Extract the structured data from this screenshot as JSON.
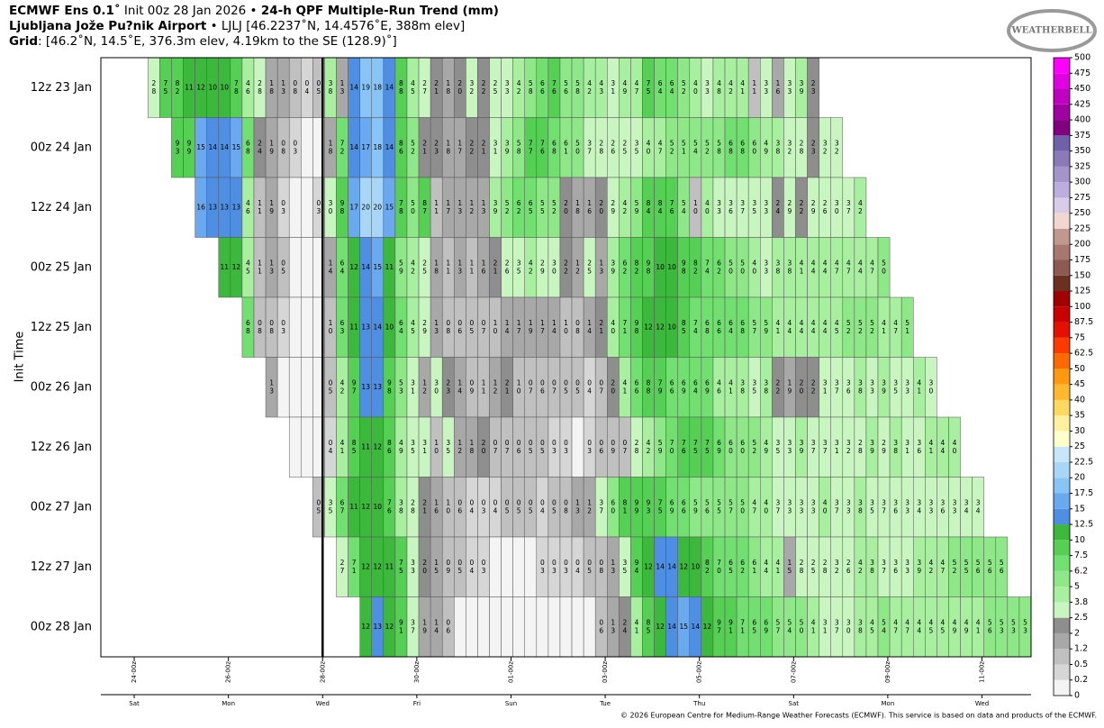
{
  "chart_data": {
    "type": "heatmap",
    "title": "ECMWF Ens 0.1˚",
    "run": "Init 00z 28 Jan 2026 •",
    "subtitle": "24-h QPF Multiple-Run Trend (mm)",
    "station": "Ljubljana Jože Pu?nik Airport",
    "station_info": "• LJLJ [46.2237˚N, 14.4576˚E, 388m elev]",
    "grid_label": "Grid",
    "grid_info": ": [46.2˚N, 14.5˚E, 376.3m elev, 4.19km to the SE (128.9)˚]",
    "logo": "WEATHERBELL",
    "ylabel": "Init Time",
    "footer": "© 2026 European Centre for Medium-Range Weather Forecasts (ECMWF). This service is based on data and products of the ECMWF.",
    "xlim": [
      7,
      481
    ],
    "xticks": [
      {
        "value": 24,
        "label": "24-00z"
      },
      {
        "value": 72,
        "label": "26-00z"
      },
      {
        "value": 120,
        "label": "28-00z"
      },
      {
        "value": 168,
        "label": "30-00z"
      },
      {
        "value": 216,
        "label": "01-00z"
      },
      {
        "value": 264,
        "label": "03-00z"
      },
      {
        "value": 312,
        "label": "05-00z"
      },
      {
        "value": 360,
        "label": "07-00z"
      },
      {
        "value": 408,
        "label": "09-00z"
      },
      {
        "value": 456,
        "label": "11-00z"
      }
    ],
    "xticks2": [
      {
        "value": 24,
        "label": "Sat"
      },
      {
        "value": 72,
        "label": "Mon"
      },
      {
        "value": 120,
        "label": "Wed"
      },
      {
        "value": 168,
        "label": "Fri"
      },
      {
        "value": 216,
        "label": "Sun"
      },
      {
        "value": 264,
        "label": "Tue"
      },
      {
        "value": 312,
        "label": "Thu"
      },
      {
        "value": 360,
        "label": "Sat"
      },
      {
        "value": 408,
        "label": "Mon"
      },
      {
        "value": 456,
        "label": "Wed"
      }
    ],
    "init_line": 120,
    "colorbar": {
      "levels": [
        0,
        0.2,
        0.5,
        1.2,
        2,
        2.5,
        3.8,
        5,
        6.2,
        7.5,
        10,
        12.5,
        15,
        17.5,
        20,
        22.5,
        25,
        30,
        35,
        40,
        45,
        50,
        62.5,
        75,
        87.5,
        100,
        125,
        150,
        175,
        200,
        225,
        250,
        275,
        300,
        325,
        350,
        375,
        400,
        425,
        450,
        475,
        500
      ],
      "colors": [
        "#f4f4f4",
        "#d6d6d6",
        "#c0c0c0",
        "#a8a8a8",
        "#8e8e8e",
        "#c8f5c0",
        "#a8efa0",
        "#8ee888",
        "#72e070",
        "#55d055",
        "#3cb83c",
        "#4f8fe3",
        "#6aa8f0",
        "#88c4f5",
        "#a8d6f7",
        "#c8e6fa",
        "#ffffcc",
        "#fff0a0",
        "#ffd860",
        "#ffb830",
        "#ff9a10",
        "#ff6a00",
        "#ff3a00",
        "#e41000",
        "#c80000",
        "#a00000",
        "#6a3020",
        "#8c5a50",
        "#a87870",
        "#c09890",
        "#f0d8d0",
        "#d8cce8",
        "#bcaedc",
        "#a394cc",
        "#8a7ab8",
        "#7060a8",
        "#800080",
        "#a000a0",
        "#c000c0",
        "#e000e0",
        "#ff00ff"
      ]
    },
    "series": [
      {
        "name": "12z 23 Jan",
        "values": [
          null,
          null,
          null,
          null,
          2.8,
          7.5,
          8.2,
          11,
          12,
          10,
          10,
          7.8,
          4.6,
          2.8,
          1.8,
          1.3,
          0.8,
          0.4,
          0.5,
          3.8,
          1.3,
          14,
          19,
          18,
          14,
          8.8,
          4.5,
          2.7,
          2.1,
          1.8,
          2,
          3.2,
          2.2,
          2.5,
          3.3,
          4.2,
          5.8,
          6.6,
          7.6,
          5.6,
          5.8,
          4.2,
          4.3,
          3.1,
          4.9,
          4.7,
          7.5,
          6.4,
          6.4,
          5.2,
          4,
          3.3,
          4.8,
          4.2,
          4.1,
          1.1,
          3.3,
          1.6,
          3.3,
          3.9,
          2.3,
          null,
          null,
          null,
          null,
          null,
          null,
          null,
          null,
          null,
          null,
          null,
          null,
          null,
          null,
          null,
          null,
          null,
          null
        ]
      },
      {
        "name": "00z 24 Jan",
        "values": [
          null,
          null,
          null,
          null,
          null,
          null,
          9.3,
          9.9,
          15,
          14,
          14,
          15,
          6.8,
          2.4,
          1.9,
          0.8,
          0.3,
          0,
          0,
          1.8,
          7.2,
          14,
          17,
          18,
          14,
          8.6,
          5.2,
          2.1,
          2.3,
          1.8,
          1.7,
          2.2,
          2.1,
          3.1,
          3.9,
          5.8,
          7.7,
          7.6,
          6.8,
          6.1,
          5,
          3.7,
          2.8,
          2.6,
          2.5,
          3.5,
          4,
          4.7,
          5.2,
          5.1,
          5.4,
          5.2,
          5.8,
          6.8,
          6.8,
          6,
          4.9,
          3.8,
          3.2,
          2.8,
          2.3,
          3.2,
          3.2,
          null,
          null,
          null,
          null,
          null,
          null,
          null,
          null,
          null,
          null,
          null,
          null,
          null,
          null,
          null,
          null
        ]
      },
      {
        "name": "12z 24 Jan",
        "values": [
          null,
          null,
          null,
          null,
          null,
          null,
          null,
          null,
          16,
          13,
          13,
          13,
          4.6,
          1.1,
          1.9,
          0.3,
          0,
          0,
          0.3,
          3,
          9.8,
          17,
          20,
          20,
          15,
          7.8,
          5,
          8.7,
          1.1,
          1.7,
          1.3,
          1.2,
          1.3,
          3.9,
          5.2,
          6.2,
          6.5,
          5.5,
          5.2,
          2,
          1.8,
          1.6,
          2,
          2.9,
          4.2,
          5.9,
          8.4,
          8.4,
          7.6,
          5.4,
          1,
          4,
          3.3,
          3.6,
          3.7,
          3.5,
          3.3,
          2.4,
          2.9,
          2.2,
          2.9,
          2.6,
          3,
          3.7,
          4.2,
          null,
          null,
          null,
          null,
          null,
          null,
          null,
          null,
          null,
          null,
          null,
          null,
          null,
          null
        ]
      },
      {
        "name": "00z 25 Jan",
        "values": [
          null,
          null,
          null,
          null,
          null,
          null,
          null,
          null,
          null,
          null,
          11,
          12,
          4.5,
          1.1,
          1.3,
          0.5,
          0,
          0,
          0,
          1.4,
          6.4,
          12,
          14,
          15,
          11,
          5.9,
          4.2,
          2.5,
          1.8,
          1.1,
          1.3,
          1.1,
          1.6,
          2.1,
          2.6,
          3.5,
          4.2,
          2.9,
          3,
          2.2,
          1.2,
          2.5,
          1.3,
          3.9,
          6.2,
          8.2,
          9.8,
          10,
          10,
          9.8,
          8.2,
          7.4,
          6.2,
          5,
          5,
          4,
          3.3,
          3.8,
          3.8,
          4.1,
          4.4,
          4.4,
          4.7,
          4.7,
          4.4,
          4.7,
          5,
          null,
          null,
          null,
          null,
          null,
          null,
          null,
          null,
          null,
          null,
          null,
          null
        ]
      },
      {
        "name": "12z 25 Jan",
        "values": [
          null,
          null,
          null,
          null,
          null,
          null,
          null,
          null,
          null,
          null,
          null,
          null,
          6.8,
          0.8,
          0.8,
          0.3,
          0,
          0,
          0,
          1,
          6.3,
          11,
          13,
          14,
          10,
          6.4,
          4.5,
          2.9,
          1.3,
          0.8,
          0.6,
          0.5,
          0.7,
          1,
          1.4,
          1.7,
          1.9,
          1.7,
          1.4,
          1,
          0.8,
          1.4,
          2.1,
          4,
          7.1,
          9.8,
          12,
          12,
          10,
          8.5,
          7.4,
          6.8,
          6.6,
          6.4,
          6.8,
          5.7,
          5.9,
          4.1,
          4.4,
          4.4,
          4.4,
          4.4,
          4.5,
          5.2,
          5.2,
          5.2,
          4.1,
          4.7,
          5.1,
          null,
          null,
          null,
          null,
          null,
          null,
          null,
          null,
          null,
          null
        ]
      },
      {
        "name": "00z 26 Jan",
        "values": [
          null,
          null,
          null,
          null,
          null,
          null,
          null,
          null,
          null,
          null,
          null,
          null,
          null,
          null,
          1.3,
          0,
          0,
          0,
          0,
          0.5,
          4.2,
          9.7,
          13,
          13,
          9.8,
          5.3,
          3.1,
          1.2,
          3,
          2.3,
          1.4,
          0.9,
          1.1,
          1.2,
          2.1,
          1,
          0.7,
          0.6,
          0.7,
          0.5,
          0.5,
          0.4,
          0.7,
          2,
          4.1,
          6.6,
          8.8,
          7.9,
          6.6,
          6.9,
          6.4,
          6.9,
          4.6,
          4.1,
          3.8,
          3.5,
          3.8,
          2.2,
          1.9,
          2,
          2.2,
          3.1,
          3.7,
          3.6,
          3.8,
          3.3,
          3.9,
          3.5,
          3.3,
          4.1,
          3,
          null,
          null,
          null,
          null,
          null,
          null,
          null,
          null
        ]
      },
      {
        "name": "12z 26 Jan",
        "values": [
          null,
          null,
          null,
          null,
          null,
          null,
          null,
          null,
          null,
          null,
          null,
          null,
          null,
          null,
          null,
          null,
          0,
          0,
          0,
          0.4,
          4.1,
          8.5,
          11,
          12,
          8.6,
          4.9,
          3.5,
          3.1,
          1,
          3.5,
          1.2,
          1.8,
          2,
          0.7,
          0.7,
          0.6,
          0.5,
          0.5,
          0.3,
          0.3,
          0,
          0.3,
          0.6,
          0.9,
          0.7,
          2.8,
          4.2,
          5.9,
          7,
          7.6,
          7.5,
          7.5,
          6.9,
          6,
          6,
          5.2,
          4.9,
          3.5,
          3.3,
          3.9,
          3.7,
          3.7,
          3.1,
          3.2,
          2.8,
          3.9,
          2.9,
          3.8,
          3.1,
          3.6,
          4.1,
          4.4,
          4,
          null,
          null,
          null,
          null,
          null,
          null
        ]
      },
      {
        "name": "00z 27 Jan",
        "values": [
          null,
          null,
          null,
          null,
          null,
          null,
          null,
          null,
          null,
          null,
          null,
          null,
          null,
          null,
          null,
          null,
          null,
          null,
          0.5,
          3.5,
          6.7,
          11,
          12,
          10,
          7.6,
          3.8,
          2.8,
          2.1,
          1.6,
          1,
          0.6,
          0.4,
          0.3,
          0.4,
          0.5,
          0.5,
          0.5,
          0.4,
          0.5,
          0.8,
          1.3,
          1.2,
          3.7,
          6,
          8.1,
          9.9,
          9.3,
          7.5,
          6.9,
          6.6,
          5.9,
          5.6,
          5.5,
          5.7,
          5,
          4.7,
          4,
          3.7,
          3.3,
          3.3,
          3.3,
          4,
          3.7,
          3.3,
          3.8,
          3.5,
          3.7,
          3.6,
          3.3,
          3.4,
          3.3,
          3.6,
          3.3,
          3.4,
          3.4,
          null,
          null,
          null,
          null
        ]
      },
      {
        "name": "12z 27 Jan",
        "values": [
          null,
          null,
          null,
          null,
          null,
          null,
          null,
          null,
          null,
          null,
          null,
          null,
          null,
          null,
          null,
          null,
          null,
          null,
          null,
          null,
          2.7,
          7.1,
          12,
          12,
          11,
          7.5,
          3.3,
          2,
          1.5,
          0.9,
          0.5,
          0.4,
          0.3,
          0,
          0,
          0,
          0,
          0.3,
          0.3,
          0.3,
          0.4,
          0.5,
          0.8,
          1.3,
          3.5,
          9.4,
          12,
          14,
          14,
          12,
          10,
          8.2,
          7,
          6.5,
          6.2,
          6.1,
          4.4,
          4.1,
          1.5,
          2.8,
          2.5,
          2.8,
          3.2,
          2.6,
          4.2,
          3.8,
          3.7,
          3.6,
          3.3,
          3.9,
          4.2,
          4.7,
          5.2,
          5.5,
          5.6,
          5.6,
          5.6,
          null,
          null
        ]
      },
      {
        "name": "00z 28 Jan",
        "values": [
          null,
          null,
          null,
          null,
          null,
          null,
          null,
          null,
          null,
          null,
          null,
          null,
          null,
          null,
          null,
          null,
          null,
          null,
          null,
          null,
          null,
          null,
          12,
          13,
          12,
          9.1,
          3.7,
          1.9,
          1.4,
          0.6,
          0,
          0,
          0,
          0,
          0,
          0,
          0,
          0,
          0,
          0,
          0,
          0,
          0.6,
          1.3,
          2.4,
          4.1,
          8.5,
          12,
          14,
          15,
          14,
          12,
          9.7,
          9.1,
          7.1,
          6.5,
          6.9,
          5.7,
          5.4,
          5,
          4.1,
          3.1,
          3.7,
          3,
          3.8,
          4.5,
          5.4,
          4.7,
          4.7,
          4.4,
          4.5,
          4.5,
          4.9,
          4.9,
          4.1,
          5.6,
          5.3,
          5.3,
          5.3
        ]
      }
    ]
  }
}
